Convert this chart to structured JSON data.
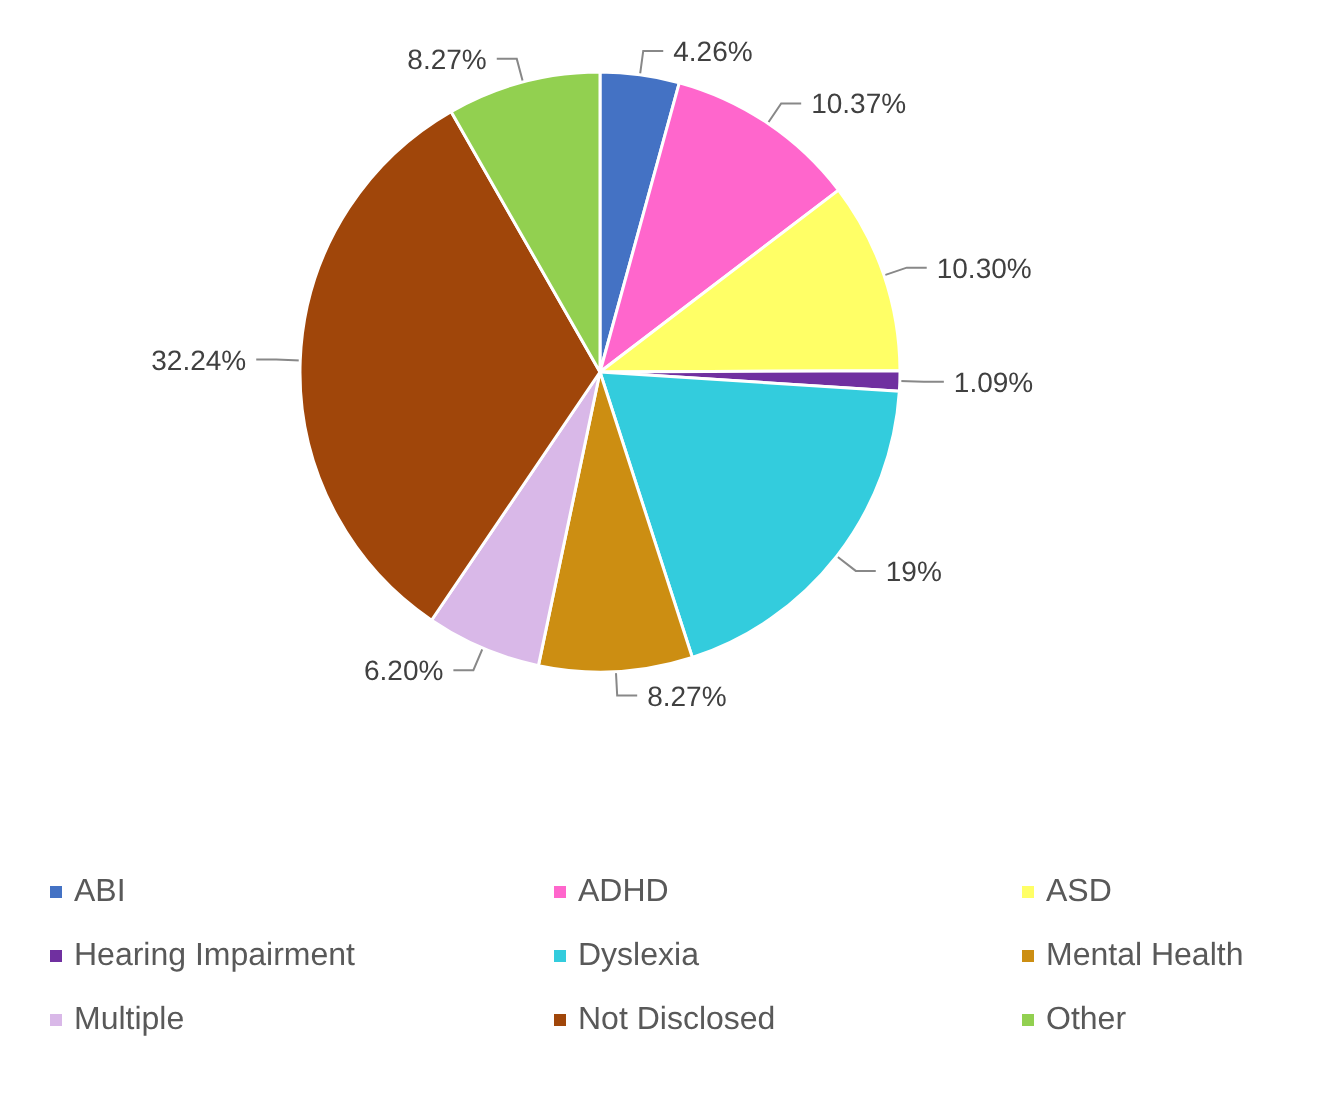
{
  "chart_data": {
    "type": "pie",
    "categories": [
      "ABI",
      "ADHD",
      "ASD",
      "Hearing Impairment",
      "Dyslexia",
      "Mental Health",
      "Multiple",
      "Not Disclosed",
      "Other"
    ],
    "values": [
      4.26,
      10.37,
      10.3,
      1.09,
      19,
      8.27,
      6.2,
      32.24,
      8.27
    ],
    "value_labels": [
      "4.26%",
      "10.37%",
      "10.30%",
      "1.09%",
      "19%",
      "8.27%",
      "6.20%",
      "32.24%",
      "8.27%"
    ],
    "colors": [
      "#4472c4",
      "#ff66cc",
      "#ffff66",
      "#7030a0",
      "#33ccdd",
      "#cc8e12",
      "#d9b8e8",
      "#a0460a",
      "#92d050"
    ],
    "legend": "bottom"
  }
}
